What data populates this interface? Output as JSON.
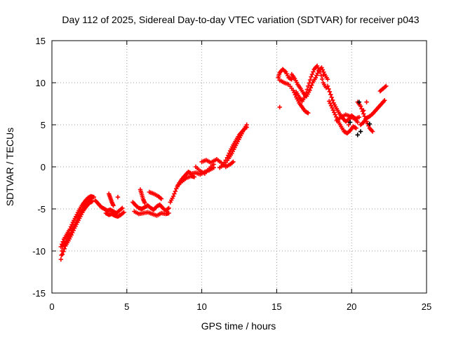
{
  "chart_data": {
    "type": "scatter",
    "title": "Day 112 of 2025, Sidereal Day-to-day VTEC variation (SDTVAR) for receiver p043",
    "xlabel": "GPS time / hours",
    "ylabel": "SDTVAR / TECUs",
    "xlim": [
      0,
      25
    ],
    "ylim": [
      -15,
      15
    ],
    "xticks": [
      "0",
      "5",
      "10",
      "15",
      "20",
      "25"
    ],
    "yticks": [
      "-15",
      "-10",
      "-5",
      "0",
      "5",
      "10",
      "15"
    ],
    "grid": true,
    "legend": "none",
    "marker": "plus",
    "colors": {
      "series": "#ff0000",
      "alt_points": "#000000"
    },
    "tracks": [
      [
        [
          0.6,
          -11.0
        ],
        [
          0.7,
          -9.5
        ],
        [
          0.9,
          -9.0
        ],
        [
          1.1,
          -8.3
        ],
        [
          1.3,
          -7.8
        ],
        [
          1.5,
          -7.0
        ],
        [
          1.7,
          -6.3
        ],
        [
          1.9,
          -5.5
        ],
        [
          2.1,
          -4.8
        ],
        [
          2.3,
          -4.3
        ],
        [
          2.5,
          -3.8
        ],
        [
          2.7,
          -3.6
        ]
      ],
      [
        [
          0.6,
          -9.5
        ],
        [
          0.8,
          -8.6
        ],
        [
          1.0,
          -8.0
        ],
        [
          1.2,
          -7.4
        ],
        [
          1.4,
          -6.6
        ],
        [
          1.6,
          -5.9
        ],
        [
          1.8,
          -5.2
        ],
        [
          2.0,
          -4.6
        ],
        [
          2.2,
          -4.1
        ],
        [
          2.4,
          -3.7
        ],
        [
          2.6,
          -3.5
        ],
        [
          2.8,
          -3.6
        ]
      ],
      [
        [
          0.7,
          -10.4
        ],
        [
          0.9,
          -9.4
        ],
        [
          1.1,
          -8.8
        ],
        [
          1.3,
          -8.1
        ],
        [
          1.5,
          -7.3
        ],
        [
          1.7,
          -6.6
        ],
        [
          1.9,
          -5.9
        ],
        [
          2.1,
          -5.2
        ],
        [
          2.3,
          -4.7
        ],
        [
          2.5,
          -4.3
        ],
        [
          2.7,
          -4.1
        ]
      ],
      [
        [
          2.9,
          -4.0
        ],
        [
          3.1,
          -4.4
        ],
        [
          3.3,
          -4.8
        ],
        [
          3.5,
          -5.0
        ],
        [
          3.7,
          -5.2
        ],
        [
          3.9,
          -5.1
        ],
        [
          4.1,
          -5.3
        ],
        [
          4.3,
          -5.5
        ],
        [
          4.5,
          -5.2
        ],
        [
          4.7,
          -4.9
        ]
      ],
      [
        [
          3.6,
          -5.5
        ],
        [
          3.8,
          -5.7
        ],
        [
          4.0,
          -5.6
        ],
        [
          4.2,
          -5.8
        ],
        [
          4.4,
          -5.9
        ],
        [
          4.6,
          -5.7
        ],
        [
          4.8,
          -5.4
        ]
      ],
      [
        [
          3.8,
          -3.2
        ],
        [
          3.9,
          -3.7
        ],
        [
          4.0,
          -4.2
        ],
        [
          4.1,
          -4.6
        ]
      ],
      [
        [
          5.4,
          -4.2
        ],
        [
          5.6,
          -4.6
        ],
        [
          5.8,
          -4.9
        ],
        [
          6.0,
          -5.0
        ],
        [
          6.2,
          -4.8
        ],
        [
          6.4,
          -4.6
        ],
        [
          6.6,
          -4.9
        ],
        [
          6.8,
          -5.1
        ],
        [
          7.0,
          -4.7
        ],
        [
          7.2,
          -4.5
        ],
        [
          7.4,
          -4.9
        ],
        [
          7.6,
          -5.2
        ],
        [
          7.8,
          -4.9
        ]
      ],
      [
        [
          5.5,
          -5.3
        ],
        [
          5.8,
          -5.6
        ],
        [
          6.1,
          -5.5
        ],
        [
          6.4,
          -5.4
        ],
        [
          6.7,
          -5.6
        ],
        [
          7.0,
          -5.8
        ],
        [
          7.3,
          -5.5
        ],
        [
          7.6,
          -5.6
        ],
        [
          7.8,
          -5.5
        ]
      ],
      [
        [
          5.9,
          -2.7
        ],
        [
          6.0,
          -3.3
        ],
        [
          6.1,
          -3.9
        ],
        [
          6.2,
          -4.3
        ]
      ],
      [
        [
          6.5,
          -3.0
        ],
        [
          6.8,
          -3.2
        ],
        [
          7.1,
          -3.5
        ],
        [
          7.3,
          -3.8
        ]
      ],
      [
        [
          7.9,
          -4.2
        ],
        [
          8.1,
          -3.5
        ],
        [
          8.3,
          -2.6
        ],
        [
          8.5,
          -1.9
        ],
        [
          8.7,
          -1.4
        ],
        [
          8.9,
          -1.0
        ],
        [
          9.1,
          -0.6
        ],
        [
          9.3,
          -0.8
        ],
        [
          9.6,
          -0.7
        ],
        [
          9.9,
          -0.9
        ],
        [
          10.2,
          -0.6
        ],
        [
          10.5,
          -0.4
        ],
        [
          10.8,
          -0.1
        ]
      ],
      [
        [
          8.4,
          -2.2
        ],
        [
          8.7,
          -1.7
        ],
        [
          9.0,
          -1.3
        ],
        [
          9.3,
          -1.1
        ],
        [
          9.5,
          -1.2
        ]
      ],
      [
        [
          9.6,
          0.0
        ],
        [
          9.9,
          -0.5
        ],
        [
          10.2,
          -0.8
        ],
        [
          10.5,
          -0.2
        ],
        [
          10.8,
          0.3
        ]
      ],
      [
        [
          10.0,
          0.6
        ],
        [
          10.3,
          0.8
        ],
        [
          10.6,
          0.5
        ],
        [
          10.9,
          0.8
        ]
      ],
      [
        [
          11.0,
          0.9
        ],
        [
          11.3,
          0.5
        ],
        [
          11.6,
          0.0
        ],
        [
          11.9,
          0.3
        ],
        [
          12.1,
          0.6
        ]
      ],
      [
        [
          11.2,
          -0.1
        ],
        [
          11.5,
          0.3
        ],
        [
          11.8,
          1.0
        ],
        [
          12.0,
          1.6
        ],
        [
          12.2,
          2.3
        ],
        [
          12.4,
          3.0
        ],
        [
          12.6,
          3.7
        ],
        [
          12.8,
          4.4
        ],
        [
          13.0,
          5.0
        ]
      ],
      [
        [
          11.4,
          0.2
        ],
        [
          11.7,
          1.1
        ],
        [
          11.9,
          1.9
        ],
        [
          12.1,
          2.6
        ],
        [
          12.3,
          3.2
        ],
        [
          12.5,
          3.8
        ],
        [
          12.7,
          4.2
        ],
        [
          12.9,
          4.6
        ]
      ],
      [
        [
          15.1,
          10.6
        ],
        [
          15.2,
          11.2
        ],
        [
          15.4,
          11.6
        ],
        [
          15.6,
          11.3
        ],
        [
          15.8,
          10.6
        ],
        [
          16.0,
          10.4
        ]
      ],
      [
        [
          15.2,
          10.3
        ],
        [
          15.5,
          10.0
        ],
        [
          15.8,
          9.8
        ],
        [
          16.1,
          9.1
        ],
        [
          16.3,
          8.3
        ],
        [
          16.5,
          7.6
        ],
        [
          16.7,
          7.1
        ],
        [
          16.9,
          6.6
        ],
        [
          17.1,
          6.4
        ]
      ],
      [
        [
          16.0,
          11.0
        ],
        [
          16.2,
          10.5
        ],
        [
          16.4,
          9.8
        ],
        [
          16.6,
          9.3
        ],
        [
          16.8,
          8.7
        ],
        [
          17.0,
          8.4
        ],
        [
          17.2,
          9.1
        ],
        [
          17.4,
          10.0
        ],
        [
          17.6,
          10.6
        ],
        [
          17.8,
          11.4
        ],
        [
          18.0,
          11.8
        ],
        [
          18.2,
          11.0
        ],
        [
          18.4,
          10.4
        ]
      ],
      [
        [
          16.3,
          8.9
        ],
        [
          16.5,
          8.3
        ],
        [
          16.7,
          7.8
        ],
        [
          16.9,
          8.4
        ],
        [
          17.1,
          9.6
        ],
        [
          17.3,
          10.7
        ],
        [
          17.5,
          11.6
        ],
        [
          17.7,
          12.0
        ],
        [
          17.9,
          11.3
        ],
        [
          18.1,
          10.0
        ],
        [
          18.3,
          9.4
        ]
      ],
      [
        [
          18.4,
          9.6
        ],
        [
          18.6,
          8.6
        ],
        [
          18.8,
          7.6
        ],
        [
          19.0,
          6.9
        ],
        [
          19.2,
          6.3
        ],
        [
          19.4,
          5.8
        ],
        [
          19.6,
          5.4
        ],
        [
          19.8,
          5.6
        ],
        [
          20.0,
          6.1
        ],
        [
          20.2,
          5.8
        ],
        [
          20.4,
          5.3
        ]
      ],
      [
        [
          18.5,
          7.8
        ],
        [
          18.7,
          7.0
        ],
        [
          18.9,
          6.2
        ],
        [
          19.1,
          5.4
        ],
        [
          19.3,
          4.8
        ],
        [
          19.5,
          4.2
        ],
        [
          19.7,
          4.0
        ],
        [
          19.9,
          4.3
        ],
        [
          20.1,
          4.8
        ],
        [
          20.3,
          4.6
        ]
      ],
      [
        [
          19.0,
          5.5
        ],
        [
          19.3,
          5.9
        ],
        [
          19.6,
          6.2
        ],
        [
          19.9,
          6.0
        ],
        [
          20.2,
          5.7
        ],
        [
          20.5,
          5.9
        ]
      ],
      [
        [
          20.6,
          5.0
        ],
        [
          20.8,
          5.3
        ],
        [
          21.0,
          5.8
        ],
        [
          21.2,
          6.0
        ],
        [
          21.4,
          6.3
        ],
        [
          21.6,
          6.7
        ],
        [
          21.8,
          7.1
        ],
        [
          22.0,
          7.5
        ],
        [
          22.2,
          7.9
        ]
      ],
      [
        [
          20.4,
          7.7
        ],
        [
          20.6,
          7.2
        ],
        [
          20.8,
          6.3
        ],
        [
          21.0,
          5.4
        ],
        [
          21.2,
          4.6
        ],
        [
          21.4,
          4.2
        ]
      ],
      [
        [
          21.9,
          9.0
        ],
        [
          22.1,
          9.3
        ],
        [
          22.3,
          9.6
        ]
      ]
    ],
    "isolated": [
      [
        15.2,
        7.1
      ],
      [
        4.4,
        -3.6
      ],
      [
        19.8,
        5.0
      ],
      [
        20.8,
        6.7
      ],
      [
        21.0,
        7.7
      ],
      [
        18.1,
        10.9
      ],
      [
        13.0,
        4.7
      ]
    ],
    "alt_points": [
      [
        20.4,
        3.8
      ],
      [
        20.6,
        4.2
      ],
      [
        20.5,
        7.7
      ],
      [
        19.9,
        5.3
      ],
      [
        21.2,
        5.1
      ]
    ]
  }
}
